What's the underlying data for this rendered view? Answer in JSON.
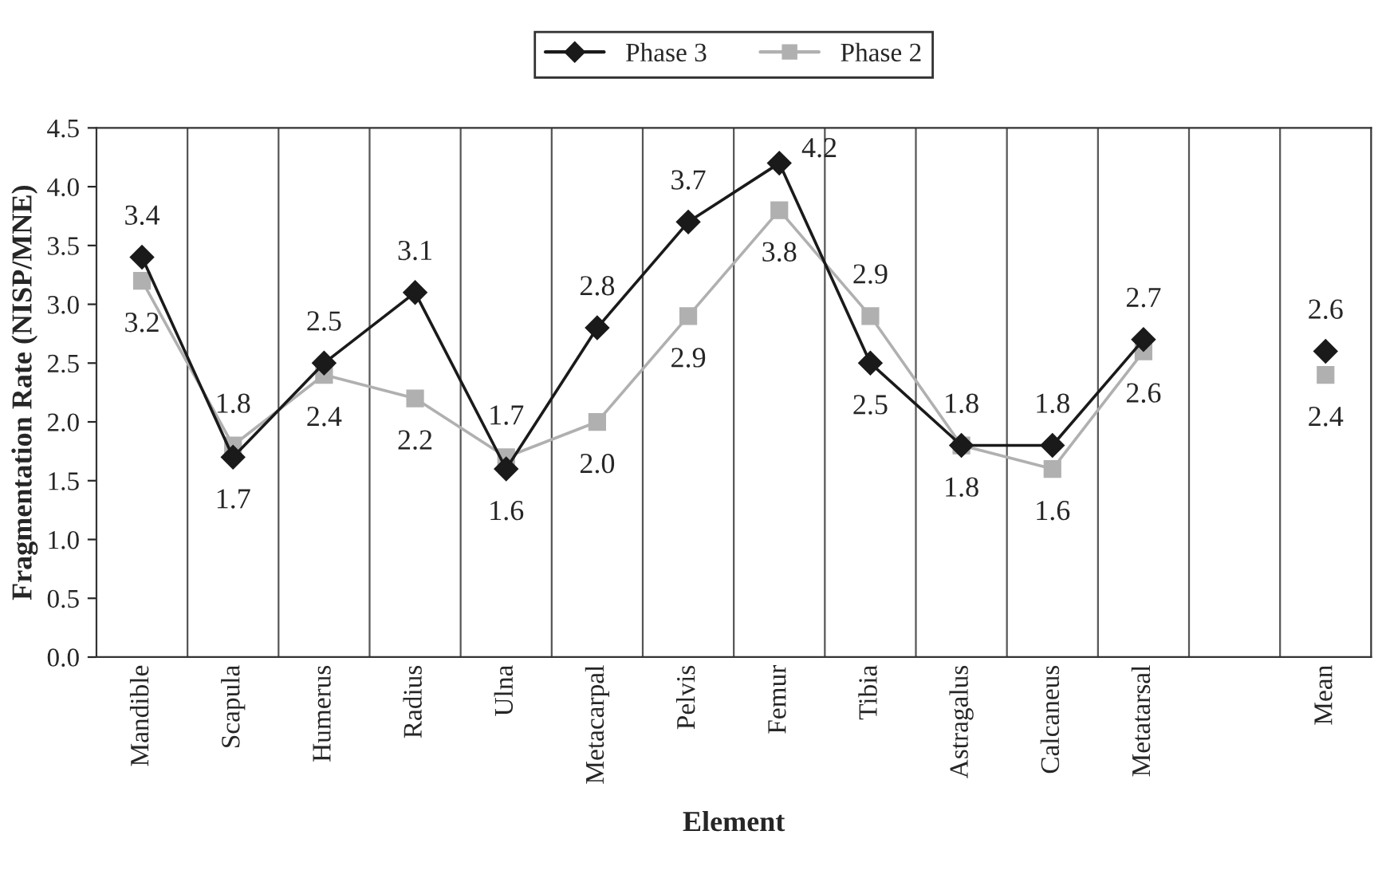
{
  "chart_data": {
    "type": "line",
    "xlabel": "Element",
    "ylabel": "Fragmentation Rate (NISP/MNE)",
    "categories": [
      "Mandible",
      "Scapula",
      "Humerus",
      "Radius",
      "Ulna",
      "Metacarpal",
      "Pelvis",
      "Femur",
      "Tibia",
      "Astragalus",
      "Calcaneus",
      "Metatarsal",
      null,
      "Mean"
    ],
    "series": [
      {
        "name": "Phase 3",
        "color": "#1a1a1a",
        "marker": "diamond",
        "values": [
          3.4,
          1.7,
          2.5,
          3.1,
          1.6,
          2.8,
          3.7,
          4.2,
          2.5,
          1.8,
          1.8,
          2.7,
          null,
          2.6
        ],
        "value_labels": [
          "3.4",
          "1.7",
          "2.5",
          "3.1",
          "1.6",
          "2.8",
          "3.7",
          "4.2",
          "2.5",
          "1.8",
          "1.8",
          "2.7",
          null,
          "2.6"
        ]
      },
      {
        "name": "Phase 2",
        "color": "#b0b0b0",
        "marker": "square",
        "values": [
          3.2,
          1.8,
          2.4,
          2.2,
          1.7,
          2.0,
          2.9,
          3.8,
          2.9,
          1.8,
          1.6,
          2.6,
          null,
          2.4
        ],
        "value_labels": [
          "3.2",
          "1.8",
          "2.4",
          "2.2",
          "1.7",
          "2.0",
          "2.9",
          "3.8",
          "2.9",
          "1.8",
          "1.6",
          "2.6",
          null,
          "2.4"
        ]
      }
    ],
    "ylim": [
      0,
      4.5
    ],
    "yticks": [
      {
        "value": 0,
        "label": "0.0"
      },
      {
        "value": 0.5,
        "label": "0.5"
      },
      {
        "value": 1,
        "label": "1.0"
      },
      {
        "value": 1.5,
        "label": "1.5"
      },
      {
        "value": 2,
        "label": "2.0"
      },
      {
        "value": 2.5,
        "label": "2.5"
      },
      {
        "value": 3,
        "label": "3.0"
      },
      {
        "value": 3.5,
        "label": "3.5"
      },
      {
        "value": 4,
        "label": "4.0"
      },
      {
        "value": 4.5,
        "label": "4.5"
      }
    ],
    "grid": "x",
    "legend": "top",
    "line_style": "solid"
  }
}
